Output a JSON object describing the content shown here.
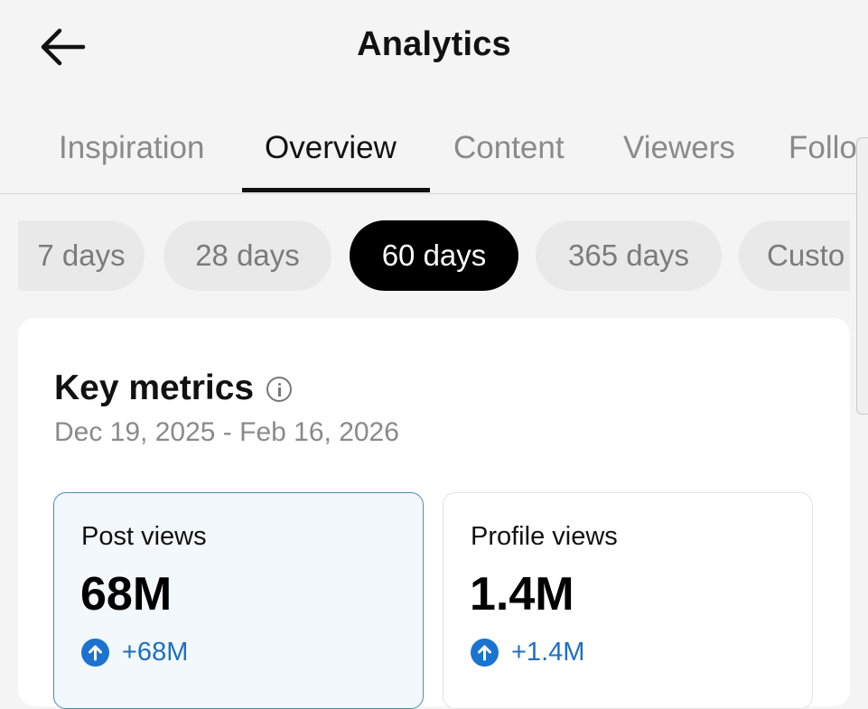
{
  "header": {
    "title": "Analytics",
    "back_icon": "arrow-left-icon"
  },
  "tabs": [
    {
      "label": "Inspiration",
      "active": false
    },
    {
      "label": "Overview",
      "active": true
    },
    {
      "label": "Content",
      "active": false
    },
    {
      "label": "Viewers",
      "active": false
    },
    {
      "label": "Follo",
      "active": false
    }
  ],
  "date_filters": [
    {
      "label": "7 days",
      "active": false
    },
    {
      "label": "28 days",
      "active": false
    },
    {
      "label": "60 days",
      "active": true
    },
    {
      "label": "365 days",
      "active": false
    },
    {
      "label": "Custo",
      "active": false
    }
  ],
  "key_metrics": {
    "title": "Key metrics",
    "info_icon": "info-icon",
    "date_range": "Dec 19, 2025 - Feb 16, 2026",
    "metrics": [
      {
        "label": "Post views",
        "value": "68M",
        "change": "+68M",
        "selected": true
      },
      {
        "label": "Profile views",
        "value": "1.4M",
        "change": "+1.4M",
        "selected": false
      }
    ]
  },
  "colors": {
    "accent_blue": "#1a73cf",
    "selected_card_bg": "#f2f8fc",
    "selected_card_border": "#4d8fa4",
    "active_chip_bg": "#000000"
  }
}
